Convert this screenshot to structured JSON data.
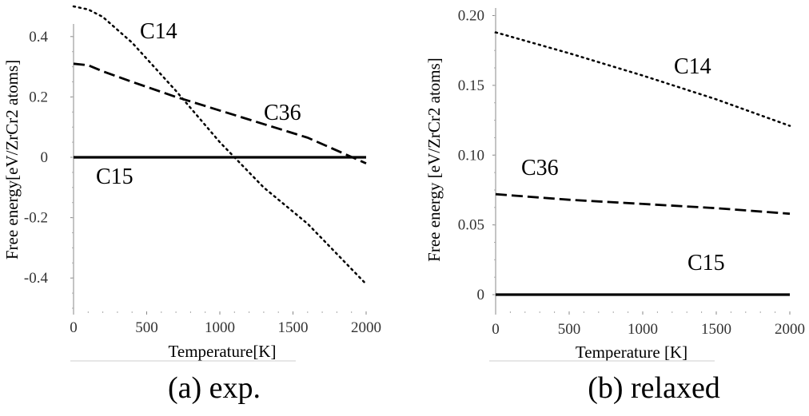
{
  "chart_data": [
    {
      "type": "line",
      "caption": "(a) exp.",
      "xlabel": "Temperature[K]",
      "ylabel": "Free energy[eV/ZrCr2 atoms]",
      "xlim": [
        0,
        2000
      ],
      "ylim": [
        -0.5,
        0.5
      ],
      "xticks": [
        0,
        500,
        1000,
        1500,
        2000
      ],
      "xticklabels": [
        "0",
        "500",
        "1000",
        "1500",
        "2000"
      ],
      "yticks": [
        -0.4,
        -0.2,
        0,
        0.2,
        0.4
      ],
      "yticklabels": [
        "-0.4",
        "-0.2",
        "0",
        "0.2",
        "0.4"
      ],
      "grid": false,
      "series": [
        {
          "name": "C14",
          "style": "dotted",
          "x": [
            0,
            100,
            200,
            400,
            700,
            1000,
            1300,
            1600,
            2000
          ],
          "y": [
            0.5,
            0.49,
            0.465,
            0.38,
            0.22,
            0.05,
            -0.1,
            -0.22,
            -0.42
          ]
        },
        {
          "name": "C36",
          "style": "dashed",
          "x": [
            0,
            100,
            200,
            400,
            700,
            1000,
            1300,
            1600,
            2000
          ],
          "y": [
            0.31,
            0.305,
            0.285,
            0.25,
            0.2,
            0.155,
            0.11,
            0.065,
            -0.02
          ]
        },
        {
          "name": "C15",
          "style": "solid",
          "x": [
            0,
            2000
          ],
          "y": [
            0,
            0
          ]
        }
      ]
    },
    {
      "type": "line",
      "caption": "(b) relaxed",
      "xlabel": "Temperature [K]",
      "ylabel": "Free energy [eV/ZrCr2 atoms]",
      "xlim": [
        0,
        2000
      ],
      "ylim": [
        -0.012,
        0.202
      ],
      "xticks": [
        0,
        500,
        1000,
        1500,
        2000
      ],
      "xticklabels": [
        "0",
        "500",
        "1000",
        "1500",
        "2000"
      ],
      "yticks": [
        0,
        0.05,
        0.1,
        0.15,
        0.2
      ],
      "yticklabels": [
        "0",
        "0.05",
        "0.10",
        "0.15",
        "0.20"
      ],
      "grid": false,
      "series": [
        {
          "name": "C14",
          "style": "dotted",
          "x": [
            0,
            500,
            1000,
            1500,
            2000
          ],
          "y": [
            0.188,
            0.173,
            0.157,
            0.14,
            0.121
          ]
        },
        {
          "name": "C36",
          "style": "dashed",
          "x": [
            0,
            500,
            1000,
            1500,
            2000
          ],
          "y": [
            0.072,
            0.068,
            0.065,
            0.062,
            0.058
          ]
        },
        {
          "name": "C15",
          "style": "solid",
          "x": [
            0,
            2000
          ],
          "y": [
            0,
            0
          ]
        }
      ]
    }
  ]
}
